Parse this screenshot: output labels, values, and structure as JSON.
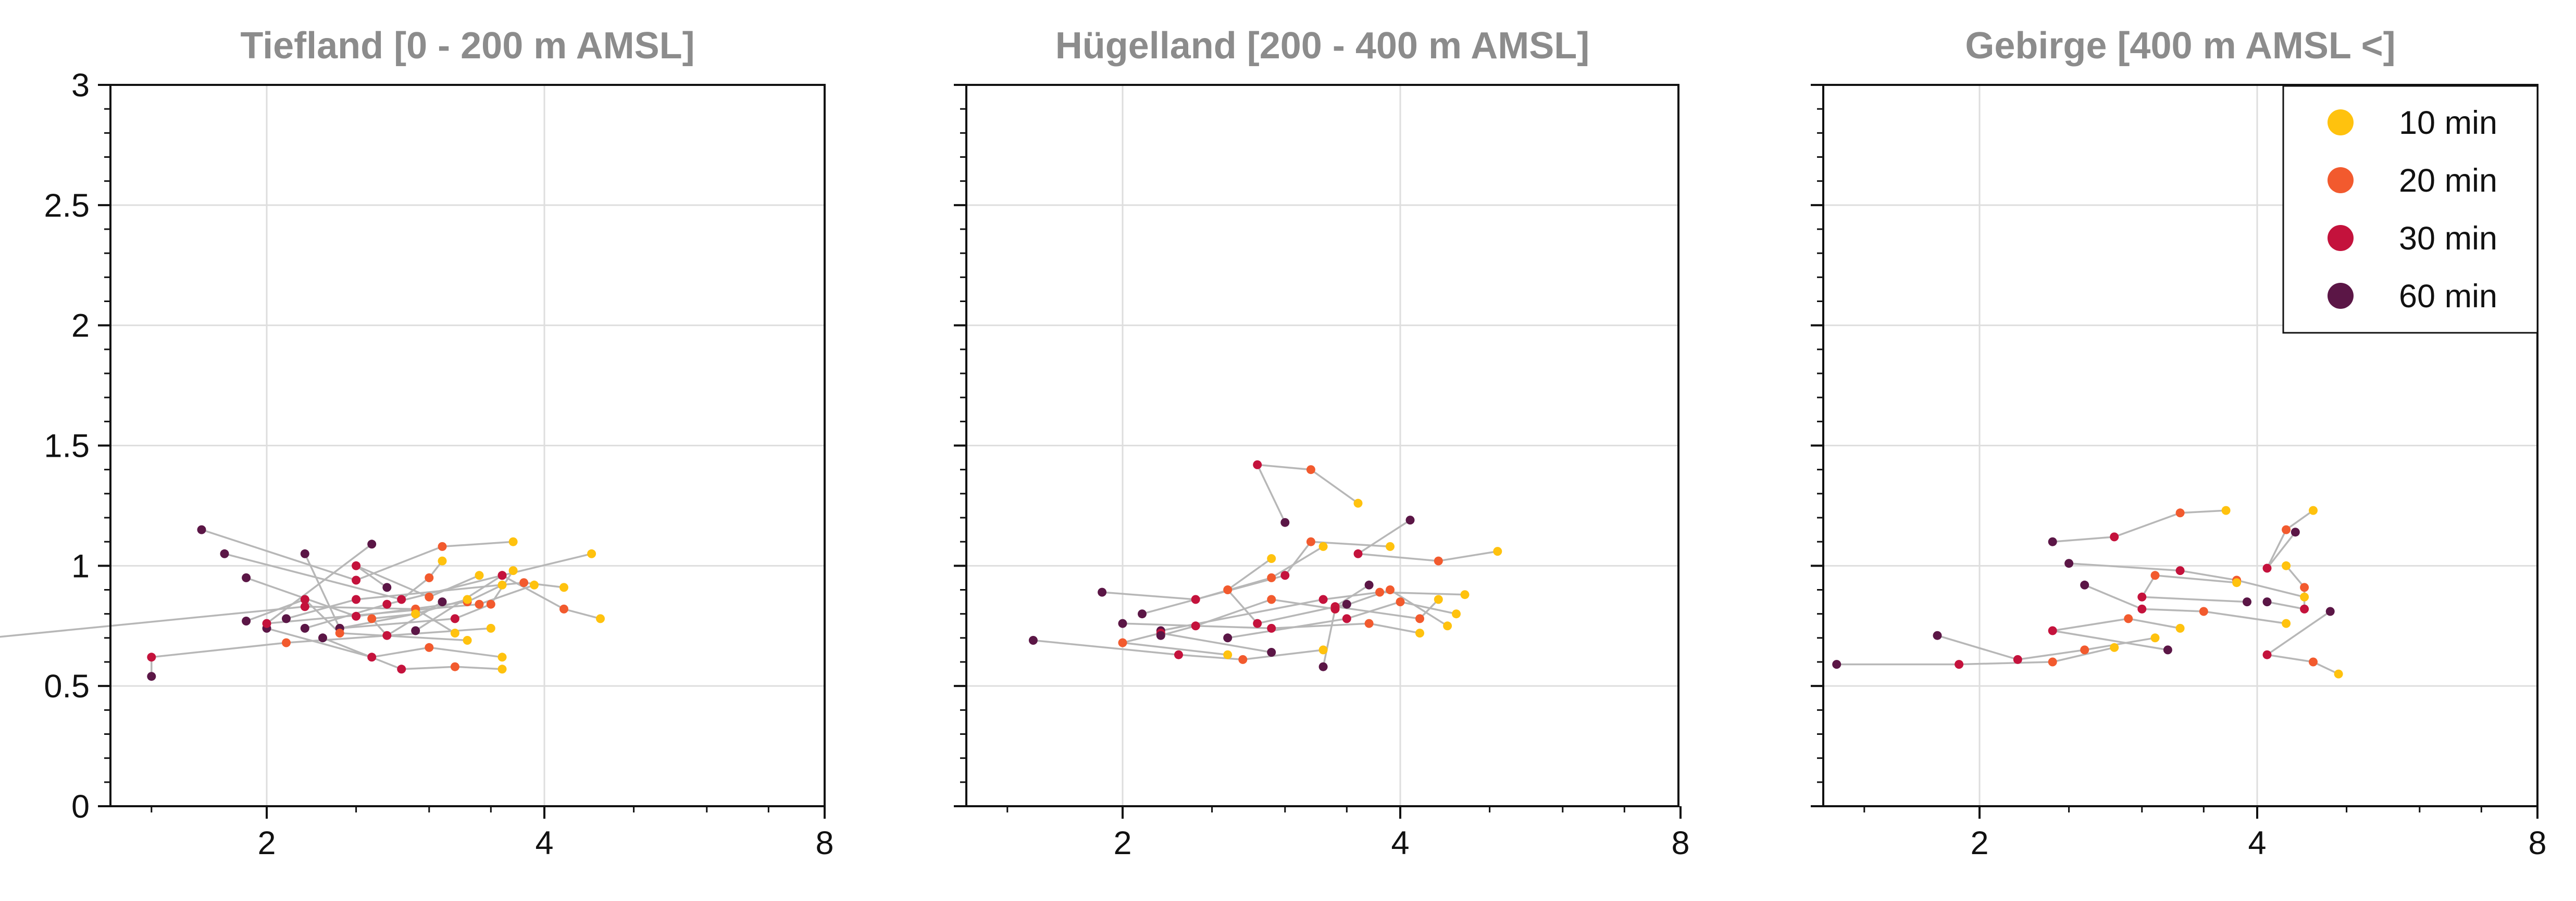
{
  "chart_data": [
    {
      "type": "scatter",
      "title": "Tiefland [0 - 200 m AMSL]",
      "xticks": [
        "2",
        "4",
        "8"
      ],
      "yticks": [
        "0",
        "0.5",
        "1",
        "1.5",
        "2",
        "2.5",
        "3"
      ],
      "ylim": [
        0,
        3
      ],
      "grid": true,
      "tracks": [
        [
          [
            3.1,
            1.02
          ],
          [
            3.0,
            0.95
          ],
          [
            2.8,
            0.86
          ],
          [
            1.8,
            1.05
          ]
        ],
        [
          [
            3.6,
            0.92
          ],
          [
            3.3,
            0.85
          ],
          [
            2.5,
            0.79
          ],
          [
            1.9,
            0.95
          ]
        ],
        [
          [
            3.7,
            1.1
          ],
          [
            3.1,
            1.08
          ],
          [
            2.5,
            0.94
          ],
          [
            1.7,
            1.15
          ]
        ],
        [
          [
            4.5,
            1.05
          ],
          [
            3.6,
            0.96
          ],
          [
            2.7,
            0.84
          ],
          [
            2.2,
            0.74
          ]
        ],
        [
          [
            4.6,
            0.78
          ],
          [
            4.2,
            0.82
          ],
          [
            3.6,
            0.96
          ],
          [
            2.9,
            0.73
          ]
        ],
        [
          [
            3.2,
            0.72
          ],
          [
            2.9,
            0.82
          ],
          [
            2.2,
            0.83
          ],
          [
            1.0,
            0.7
          ]
        ],
        [
          [
            3.6,
            0.62
          ],
          [
            3.0,
            0.66
          ],
          [
            2.6,
            0.62
          ],
          [
            2.0,
            0.74
          ]
        ],
        [
          [
            3.6,
            0.57
          ],
          [
            3.2,
            0.58
          ],
          [
            2.8,
            0.57
          ],
          [
            2.3,
            0.7
          ]
        ],
        [
          [
            3.5,
            0.74
          ],
          [
            2.1,
            0.68
          ],
          [
            1.5,
            0.62
          ],
          [
            1.5,
            0.54
          ]
        ],
        [
          [
            4.2,
            0.91
          ],
          [
            3.8,
            0.93
          ],
          [
            2.5,
            0.86
          ],
          [
            2.1,
            0.78
          ]
        ],
        [
          [
            3.3,
            0.86
          ],
          [
            2.9,
            0.8
          ],
          [
            2.4,
            0.74
          ],
          [
            2.2,
            1.05
          ]
        ],
        [
          [
            3.4,
            0.96
          ],
          [
            3.0,
            0.87
          ],
          [
            2.5,
            1.0
          ],
          [
            2.7,
            0.91
          ]
        ],
        [
          [
            2.9,
            0.8
          ],
          [
            2.6,
            0.78
          ],
          [
            2.7,
            0.71
          ],
          [
            3.1,
            0.85
          ]
        ],
        [
          [
            3.9,
            0.92
          ],
          [
            3.4,
            0.84
          ],
          [
            2.0,
            0.76
          ],
          [
            2.6,
            1.09
          ]
        ],
        [
          [
            3.7,
            0.98
          ],
          [
            3.5,
            0.84
          ],
          [
            3.2,
            0.78
          ],
          [
            2.4,
            0.74
          ]
        ],
        [
          [
            3.3,
            0.69
          ],
          [
            2.4,
            0.72
          ],
          [
            2.2,
            0.86
          ],
          [
            1.9,
            0.77
          ]
        ]
      ]
    },
    {
      "type": "scatter",
      "title": "Hügelland [200 - 400 m AMSL]",
      "xticks": [
        "2",
        "4",
        "8"
      ],
      "yticks": [
        "0",
        "0.5",
        "1",
        "1.5",
        "2",
        "2.5",
        "3"
      ],
      "ylim": [
        0,
        3
      ],
      "grid": true,
      "tracks": [
        [
          [
            3.6,
            1.26
          ],
          [
            3.2,
            1.4
          ],
          [
            2.8,
            1.42
          ],
          [
            3.0,
            1.18
          ]
        ],
        [
          [
            3.3,
            1.08
          ],
          [
            2.9,
            0.95
          ],
          [
            2.4,
            0.86
          ],
          [
            1.9,
            0.89
          ]
        ],
        [
          [
            3.9,
            1.08
          ],
          [
            3.2,
            1.1
          ],
          [
            3.0,
            0.96
          ],
          [
            2.1,
            0.8
          ]
        ],
        [
          [
            5.1,
            1.06
          ],
          [
            4.4,
            1.02
          ],
          [
            3.6,
            1.05
          ],
          [
            4.1,
            1.19
          ]
        ],
        [
          [
            4.7,
            0.88
          ],
          [
            3.8,
            0.89
          ],
          [
            3.3,
            0.86
          ],
          [
            2.2,
            0.73
          ]
        ],
        [
          [
            4.6,
            0.8
          ],
          [
            4.0,
            0.85
          ],
          [
            3.5,
            0.78
          ],
          [
            2.6,
            0.7
          ]
        ],
        [
          [
            3.3,
            0.65
          ],
          [
            2.7,
            0.61
          ],
          [
            2.3,
            0.63
          ],
          [
            1.6,
            0.69
          ]
        ],
        [
          [
            2.6,
            0.63
          ],
          [
            2.0,
            0.68
          ],
          [
            2.2,
            0.72
          ],
          [
            2.9,
            0.64
          ]
        ],
        [
          [
            4.4,
            0.86
          ],
          [
            4.2,
            0.78
          ],
          [
            3.4,
            0.83
          ],
          [
            3.7,
            0.92
          ]
        ],
        [
          [
            4.2,
            0.72
          ],
          [
            3.7,
            0.76
          ],
          [
            2.9,
            0.74
          ],
          [
            2.0,
            0.76
          ]
        ],
        [
          [
            3.4,
            0.82
          ],
          [
            2.9,
            0.86
          ],
          [
            2.4,
            0.75
          ],
          [
            2.2,
            0.71
          ]
        ],
        [
          [
            2.9,
            1.03
          ],
          [
            2.6,
            0.9
          ],
          [
            2.8,
            0.76
          ],
          [
            3.5,
            0.84
          ]
        ],
        [
          [
            4.5,
            0.75
          ],
          [
            3.9,
            0.9
          ],
          [
            3.4,
            0.82
          ],
          [
            3.3,
            0.58
          ]
        ]
      ]
    },
    {
      "type": "scatter",
      "title": "Gebirge [400 m AMSL <]",
      "xticks": [
        "2",
        "4",
        "8"
      ],
      "yticks": [
        "0",
        "0.5",
        "1",
        "1.5",
        "2",
        "2.5",
        "3"
      ],
      "ylim": [
        0,
        3
      ],
      "grid": true,
      "legend": {
        "placement": "top-right",
        "entries": [
          {
            "label": "10 min",
            "color": "#ffc20e"
          },
          {
            "label": "20 min",
            "color": "#f25a2e"
          },
          {
            "label": "30 min",
            "color": "#c4123c"
          },
          {
            "label": "60 min",
            "color": "#5b1646"
          }
        ]
      },
      "tracks": [
        [
          [
            3.7,
            1.23
          ],
          [
            3.3,
            1.22
          ],
          [
            2.8,
            1.12
          ],
          [
            2.4,
            1.1
          ]
        ],
        [
          [
            4.6,
            1.23
          ],
          [
            4.3,
            1.15
          ],
          [
            4.1,
            0.99
          ],
          [
            4.4,
            1.14
          ]
        ],
        [
          [
            4.9,
            0.55
          ],
          [
            4.6,
            0.6
          ],
          [
            4.1,
            0.63
          ],
          [
            4.8,
            0.81
          ]
        ],
        [
          [
            4.3,
            0.76
          ],
          [
            3.5,
            0.81
          ],
          [
            3.0,
            0.82
          ],
          [
            2.6,
            0.92
          ]
        ],
        [
          [
            4.5,
            0.87
          ],
          [
            3.8,
            0.94
          ],
          [
            3.3,
            0.98
          ],
          [
            2.5,
            1.01
          ]
        ],
        [
          [
            3.1,
            0.7
          ],
          [
            2.6,
            0.65
          ],
          [
            2.2,
            0.61
          ],
          [
            1.8,
            0.71
          ]
        ],
        [
          [
            2.8,
            0.66
          ],
          [
            2.4,
            0.6
          ],
          [
            1.9,
            0.59
          ],
          [
            1.4,
            0.59
          ]
        ],
        [
          [
            3.3,
            0.74
          ],
          [
            2.9,
            0.78
          ],
          [
            2.4,
            0.73
          ],
          [
            3.2,
            0.65
          ]
        ],
        [
          [
            3.8,
            0.93
          ],
          [
            3.1,
            0.96
          ],
          [
            3.0,
            0.87
          ],
          [
            3.9,
            0.85
          ]
        ],
        [
          [
            4.3,
            1.0
          ],
          [
            4.5,
            0.91
          ],
          [
            4.5,
            0.82
          ],
          [
            4.1,
            0.85
          ]
        ]
      ]
    }
  ],
  "colors": {
    "stages": [
      "#ffc20e",
      "#f25a2e",
      "#c4123c",
      "#5b1646"
    ],
    "track_line": "#b7b7b7",
    "grid": "#dedede",
    "axis": "#111111",
    "title": "#8c8c8c"
  }
}
